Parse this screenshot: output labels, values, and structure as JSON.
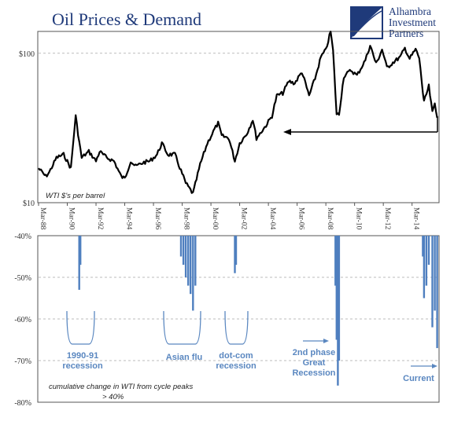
{
  "title": "Oil Prices & Demand",
  "logo": {
    "lines": [
      "Alhambra",
      "Investment",
      "Partners"
    ]
  },
  "colors": {
    "title": "#1f3a7a",
    "price_line": "#000000",
    "bars": "#4f7fbf",
    "annotation": "#5a87c0",
    "grid": "#bbbbbb"
  },
  "chart_data": [
    {
      "type": "line",
      "y_scale": "log",
      "ylim": [
        10,
        140
      ],
      "yticks": [
        "$10",
        "$100"
      ],
      "ytick_values": [
        10,
        100
      ],
      "grid": "horizontal dashed",
      "xticks": [
        "Mar-88",
        "Mar-90",
        "Mar-92",
        "Mar-94",
        "Mar-96",
        "Mar-98",
        "Mar-00",
        "Mar-02",
        "Mar-04",
        "Mar-06",
        "Mar-08",
        "Mar-10",
        "Mar-12",
        "Mar-14"
      ],
      "note": "WTI $'s per barrel",
      "series": [
        {
          "values": [
            [
              "1988-03",
              17
            ],
            [
              "1988-09",
              15
            ],
            [
              "1988-12",
              16
            ],
            [
              "1989-06",
              20
            ],
            [
              "1989-12",
              21
            ],
            [
              "1990-06",
              17
            ],
            [
              "1990-10",
              38
            ],
            [
              "1990-12",
              29
            ],
            [
              "1991-03",
              20
            ],
            [
              "1991-09",
              22
            ],
            [
              "1992-03",
              19
            ],
            [
              "1992-06",
              22
            ],
            [
              "1992-12",
              20
            ],
            [
              "1993-06",
              19
            ],
            [
              "1993-12",
              15
            ],
            [
              "1994-03",
              14.5
            ],
            [
              "1994-08",
              19
            ],
            [
              "1994-12",
              17.5
            ],
            [
              "1995-06",
              18.5
            ],
            [
              "1995-12",
              19
            ],
            [
              "1996-06",
              21
            ],
            [
              "1996-10",
              25
            ],
            [
              "1997-03",
              21
            ],
            [
              "1997-09",
              21
            ],
            [
              "1997-12",
              18
            ],
            [
              "1998-06",
              13.5
            ],
            [
              "1998-12",
              11.5
            ],
            [
              "1999-06",
              18
            ],
            [
              "1999-12",
              25
            ],
            [
              "2000-06",
              31
            ],
            [
              "2000-09",
              34
            ],
            [
              "2000-12",
              28
            ],
            [
              "2001-06",
              27
            ],
            [
              "2001-11",
              19
            ],
            [
              "2002-03",
              25
            ],
            [
              "2002-09",
              29
            ],
            [
              "2003-02",
              36
            ],
            [
              "2003-05",
              27
            ],
            [
              "2003-12",
              32
            ],
            [
              "2004-06",
              38
            ],
            [
              "2004-10",
              52
            ],
            [
              "2005-03",
              54
            ],
            [
              "2005-08",
              65
            ],
            [
              "2006-01",
              63
            ],
            [
              "2006-07",
              75
            ],
            [
              "2007-01",
              52
            ],
            [
              "2007-06",
              68
            ],
            [
              "2007-11",
              95
            ],
            [
              "2008-03",
              105
            ],
            [
              "2008-07",
              140
            ],
            [
              "2008-09",
              104
            ],
            [
              "2008-12",
              39
            ],
            [
              "2009-02",
              39
            ],
            [
              "2009-06",
              70
            ],
            [
              "2009-12",
              77
            ],
            [
              "2010-05",
              71
            ],
            [
              "2010-12",
              90
            ],
            [
              "2011-04",
              113
            ],
            [
              "2011-09",
              85
            ],
            [
              "2012-02",
              106
            ],
            [
              "2012-06",
              80
            ],
            [
              "2012-12",
              88
            ],
            [
              "2013-05",
              94
            ],
            [
              "2013-09",
              108
            ],
            [
              "2014-01",
              92
            ],
            [
              "2014-06",
              106
            ],
            [
              "2014-09",
              93
            ],
            [
              "2014-12",
              55
            ],
            [
              "2015-01",
              47
            ],
            [
              "2015-05",
              60
            ],
            [
              "2015-08",
              40
            ],
            [
              "2015-10",
              46
            ],
            [
              "2015-12",
              37
            ]
          ]
        }
      ],
      "arrow": "horizontal pointer toward the current price level"
    },
    {
      "type": "bar",
      "ylim": [
        -80,
        -40
      ],
      "yticks": [
        "-40%",
        "-50%",
        "-60%",
        "-70%",
        "-80%"
      ],
      "ytick_values": [
        -40,
        -50,
        -60,
        -70,
        -80
      ],
      "grid": "horizontal dashed",
      "note_lines": [
        "cumulative change in WTI from cycle peaks",
        "> 40%"
      ],
      "episodes": [
        {
          "label": [
            "1990-91",
            "recession"
          ],
          "bars": [
            [
              "1991-01",
              -53
            ],
            [
              "1991-02",
              -47
            ]
          ]
        },
        {
          "label": [
            "Asian flu"
          ],
          "bars": [
            [
              "1998-02",
              -45
            ],
            [
              "1998-04",
              -47
            ],
            [
              "1998-06",
              -50
            ],
            [
              "1998-08",
              -52
            ],
            [
              "1998-10",
              -54
            ],
            [
              "1998-12",
              -58
            ],
            [
              "1999-02",
              -52
            ]
          ]
        },
        {
          "label": [
            "dot-com",
            "recession"
          ],
          "bars": [
            [
              "2001-11",
              -49
            ],
            [
              "2001-12",
              -47
            ]
          ]
        },
        {
          "label": [
            "2nd phase",
            "Great",
            "Recession"
          ],
          "bars": [
            [
              "2008-11",
              -52
            ],
            [
              "2008-12",
              -65
            ],
            [
              "2009-01",
              -76
            ],
            [
              "2009-02",
              -70
            ]
          ]
        },
        {
          "label": [
            "Current"
          ],
          "bars": [
            [
              "2014-12",
              -45
            ],
            [
              "2015-01",
              -55
            ],
            [
              "2015-03",
              -52
            ],
            [
              "2015-05",
              -47
            ],
            [
              "2015-08",
              -62
            ],
            [
              "2015-10",
              -58
            ],
            [
              "2015-12",
              -67
            ]
          ]
        }
      ]
    }
  ]
}
